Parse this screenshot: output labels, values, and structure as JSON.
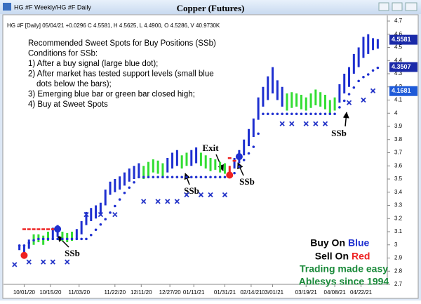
{
  "window": {
    "title": "HG #F Weekly/HG #F Daily"
  },
  "chart_data": {
    "type": "ohlc",
    "title": "Copper (Futures)",
    "subtitle": "HG #F [Daily] 05/04/21 +0.0296 C 4.5581, H 4.5625, L 4.4900, O 4.5286, V 40.9730K",
    "notes": [
      "Recommended Sweet Spots for Buy Positions (SSb)",
      "Conditions for SSb:",
      "1) After a buy signal (large blue dot);",
      "2) After market has tested support levels (small blue",
      "dots below the bars);",
      "3) Emerging blue bar or green bar closed high;",
      "4) Buy at Sweet Spots"
    ],
    "annotations": {
      "exit": "Exit",
      "ssb": [
        "SSb",
        "SSb",
        "SSb",
        "SSb"
      ]
    },
    "x": [
      0,
      1,
      2,
      3,
      4,
      5,
      6,
      7,
      8,
      9,
      10,
      11,
      12,
      13,
      14,
      15,
      16,
      17,
      18,
      19,
      20,
      21,
      22,
      23,
      24,
      25,
      26,
      27,
      28,
      29,
      30,
      31,
      32,
      33,
      34,
      35,
      36,
      37,
      38,
      39,
      40,
      41,
      42,
      43,
      44,
      45,
      46,
      47,
      48,
      49,
      50,
      51,
      52,
      53,
      54,
      55,
      56,
      57,
      58,
      59,
      60,
      61,
      62,
      63,
      64,
      65,
      66,
      67,
      68,
      69,
      70,
      71,
      72,
      73,
      74,
      75
    ],
    "lows": [
      2.96,
      2.93,
      2.97,
      3.0,
      3.02,
      3.0,
      3.03,
      3.05,
      3.06,
      3.03,
      3.02,
      3.03,
      3.05,
      3.08,
      3.15,
      3.18,
      3.2,
      3.22,
      3.3,
      3.38,
      3.4,
      3.42,
      3.45,
      3.48,
      3.5,
      3.52,
      3.5,
      3.52,
      3.55,
      3.54,
      3.52,
      3.55,
      3.58,
      3.6,
      3.58,
      3.6,
      3.6,
      3.62,
      3.6,
      3.58,
      3.56,
      3.57,
      3.55,
      3.54,
      3.53,
      3.58,
      3.62,
      3.68,
      3.75,
      3.82,
      3.95,
      4.05,
      4.1,
      4.15,
      4.1,
      4.05,
      4.02,
      4.04,
      4.05,
      4.03,
      4.02,
      4.04,
      4.06,
      4.05,
      4.03,
      4.0,
      4.02,
      4.08,
      4.15,
      4.2,
      4.3,
      4.35,
      4.42,
      4.45,
      4.48,
      4.49
    ],
    "highs": [
      3.0,
      3.0,
      3.04,
      3.08,
      3.08,
      3.07,
      3.1,
      3.13,
      3.15,
      3.1,
      3.09,
      3.1,
      3.12,
      3.18,
      3.25,
      3.28,
      3.3,
      3.32,
      3.42,
      3.48,
      3.5,
      3.52,
      3.55,
      3.58,
      3.6,
      3.62,
      3.6,
      3.63,
      3.65,
      3.64,
      3.62,
      3.66,
      3.7,
      3.72,
      3.68,
      3.7,
      3.72,
      3.74,
      3.7,
      3.68,
      3.66,
      3.65,
      3.63,
      3.62,
      3.6,
      3.66,
      3.72,
      3.8,
      3.88,
      3.96,
      4.12,
      4.2,
      4.28,
      4.35,
      4.25,
      4.2,
      4.15,
      4.16,
      4.15,
      4.14,
      4.12,
      4.15,
      4.18,
      4.16,
      4.14,
      4.1,
      4.12,
      4.22,
      4.3,
      4.35,
      4.45,
      4.5,
      4.58,
      4.6,
      4.57,
      4.5625
    ],
    "colors": [
      "#1e2fd0",
      "#1e2fd0",
      "#1e2fd0",
      "#33dd33",
      "#33dd33",
      "#33dd33",
      "#33dd33",
      "#1e2fd0",
      "#1e2fd0",
      "#33dd33",
      "#33dd33",
      "#33dd33",
      "#1e2fd0",
      "#1e2fd0",
      "#1e2fd0",
      "#1e2fd0",
      "#1e2fd0",
      "#1e2fd0",
      "#1e2fd0",
      "#1e2fd0",
      "#1e2fd0",
      "#1e2fd0",
      "#1e2fd0",
      "#1e2fd0",
      "#1e2fd0",
      "#1e2fd0",
      "#33dd33",
      "#33dd33",
      "#33dd33",
      "#33dd33",
      "#33dd33",
      "#1e2fd0",
      "#1e2fd0",
      "#1e2fd0",
      "#33dd33",
      "#33dd33",
      "#1e2fd0",
      "#1e2fd0",
      "#33dd33",
      "#33dd33",
      "#33dd33",
      "#33dd33",
      "#33dd33",
      "#33dd33",
      "#ee2222",
      "#1e2fd0",
      "#1e2fd0",
      "#1e2fd0",
      "#1e2fd0",
      "#1e2fd0",
      "#1e2fd0",
      "#1e2fd0",
      "#1e2fd0",
      "#1e2fd0",
      "#1e2fd0",
      "#1e2fd0",
      "#33dd33",
      "#33dd33",
      "#33dd33",
      "#33dd33",
      "#33dd33",
      "#33dd33",
      "#33dd33",
      "#33dd33",
      "#33dd33",
      "#33dd33",
      "#33dd33",
      "#1e2fd0",
      "#1e2fd0",
      "#1e2fd0",
      "#1e2fd0",
      "#1e2fd0",
      "#1e2fd0",
      "#1e2fd0",
      "#1e2fd0",
      "#1e2fd0"
    ],
    "support": [
      3.0,
      3.0,
      3.02,
      3.04,
      3.05,
      3.05,
      3.05,
      3.05,
      3.05,
      3.05,
      3.05,
      3.05,
      3.05,
      3.05,
      3.05,
      3.08,
      3.12,
      3.16,
      3.2,
      3.25,
      3.3,
      3.35,
      3.4,
      3.44,
      3.48,
      3.52,
      3.52,
      3.52,
      3.52,
      3.52,
      3.52,
      3.52,
      3.52,
      3.52,
      3.52,
      3.52,
      3.52,
      3.52,
      3.52,
      3.52,
      3.52,
      3.52,
      3.52,
      3.52,
      null,
      3.55,
      3.6,
      3.65,
      3.7,
      3.75,
      3.85,
      4.0,
      4.0,
      4.0,
      4.0,
      4.0,
      4.0,
      4.0,
      4.0,
      4.0,
      4.0,
      4.0,
      4.0,
      4.0,
      4.0,
      4.0,
      4.0,
      4.05,
      4.1,
      4.15,
      4.2,
      4.25,
      4.28,
      4.3,
      4.33,
      4.35
    ],
    "support_color": "#1e2fd0",
    "stops": {
      "x": [
        -1,
        2,
        5,
        7,
        10,
        14,
        17,
        20,
        26,
        29,
        31,
        33,
        35,
        38,
        40,
        43,
        55,
        57,
        60,
        62,
        64,
        69,
        72,
        74
      ],
      "y": [
        2.85,
        2.87,
        2.87,
        2.87,
        2.87,
        3.23,
        3.23,
        3.23,
        3.33,
        3.33,
        3.33,
        3.33,
        3.38,
        3.38,
        3.38,
        3.38,
        3.92,
        3.92,
        3.92,
        3.92,
        3.92,
        4.08,
        4.1,
        4.17
      ],
      "color": "#2535c8"
    },
    "sell_marks": {
      "x": [
        1,
        2,
        3,
        4,
        5,
        6,
        7,
        44,
        45
      ],
      "y": [
        3.12,
        3.12,
        3.12,
        3.12,
        3.12,
        3.12,
        3.12,
        3.66,
        3.64
      ],
      "color": "#ee2222"
    },
    "signals": {
      "x": [
        1,
        8,
        44,
        46
      ],
      "y": [
        2.92,
        3.12,
        3.53,
        3.67
      ],
      "colors": [
        "#ee2222",
        "#1e2fd0",
        "#ee2222",
        "#1e2fd0"
      ]
    },
    "xlim": [
      -2,
      77
    ],
    "xticks": [
      {
        "value": 1,
        "label": "10/01/20"
      },
      {
        "value": 6.5,
        "label": "10/15/20"
      },
      {
        "value": 12.5,
        "label": "11/03/20"
      },
      {
        "value": 20,
        "label": "11/22/20"
      },
      {
        "value": 25.5,
        "label": "12/11/20"
      },
      {
        "value": 31.5,
        "label": "12/27/20"
      },
      {
        "value": 36.5,
        "label": "01/11/21"
      },
      {
        "value": 43,
        "label": "01/31/21"
      },
      {
        "value": 48.5,
        "label": "02/14/21"
      },
      {
        "value": 53,
        "label": "03/01/21"
      },
      {
        "value": 60,
        "label": "03/19/21"
      },
      {
        "value": 66,
        "label": "04/08/21"
      },
      {
        "value": 71.5,
        "label": "04/22/21"
      }
    ],
    "ylim": [
      2.7,
      4.7
    ],
    "yticks": [
      2.7,
      2.8,
      2.9,
      3,
      3.1,
      3.2,
      3.3,
      3.4,
      3.5,
      3.6,
      3.7,
      3.8,
      3.9,
      4,
      4.1,
      4.2,
      4.3,
      4.4,
      4.5,
      4.6,
      4.7
    ],
    "price_labels": [
      4.5581,
      4.3507,
      4.1681
    ],
    "price_label_colors": [
      "#1a2aa8",
      "#1a2aa8",
      "#1e5ad8"
    ],
    "branding": {
      "buy": "Buy On",
      "blue": "Blue",
      "sell": "Sell On",
      "red": "Red",
      "tagline": "Trading made easy",
      "since": "Ablesys since 1994"
    }
  }
}
